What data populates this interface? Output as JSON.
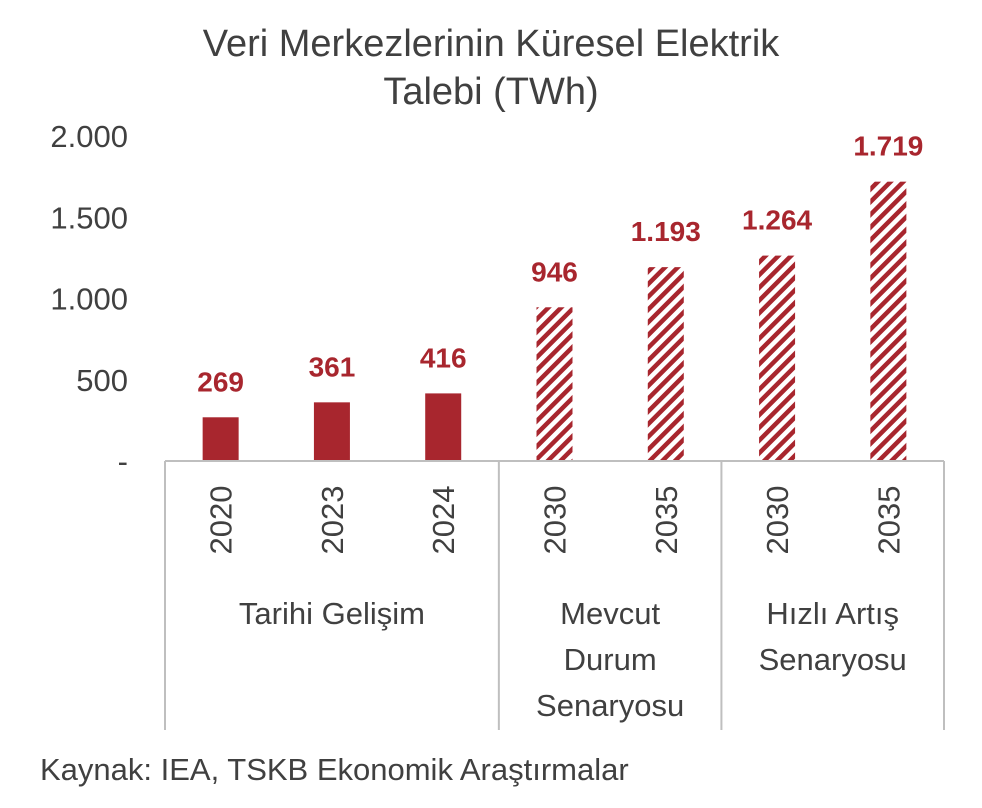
{
  "chart_data": {
    "type": "bar",
    "title_lines": [
      "Veri Merkezlerinin Küresel Elektrik",
      "Talebi (TWh)"
    ],
    "ylim": [
      0,
      2000
    ],
    "yticks": [
      {
        "value": 0,
        "label": "-"
      },
      {
        "value": 500,
        "label": "500"
      },
      {
        "value": 1000,
        "label": "1.000"
      },
      {
        "value": 1500,
        "label": "1.500"
      },
      {
        "value": 2000,
        "label": "2.000"
      }
    ],
    "categories": [
      "2020",
      "2023",
      "2024",
      "2030",
      "2035",
      "2030",
      "2035"
    ],
    "values": [
      269,
      361,
      416,
      946,
      1193,
      1264,
      1719
    ],
    "value_labels": [
      "269",
      "361",
      "416",
      "946",
      "1.193",
      "1.264",
      "1.719"
    ],
    "bar_style": [
      "solid",
      "solid",
      "solid",
      "hatched",
      "hatched",
      "hatched",
      "hatched"
    ],
    "groups": [
      {
        "label_lines": [
          "Tarihi Gelişim"
        ],
        "start": 0,
        "end": 2
      },
      {
        "label_lines": [
          "Mevcut",
          "Durum",
          "Senaryosu"
        ],
        "start": 3,
        "end": 4
      },
      {
        "label_lines": [
          "Hızlı Artış",
          "Senaryosu"
        ],
        "start": 5,
        "end": 6
      }
    ],
    "grid": false,
    "legend": "none"
  },
  "colors": {
    "bar": "#a8262e",
    "label": "#a8262e",
    "text": "#404040",
    "axis": "#bfbfbf"
  },
  "source": "Kaynak: IEA, TSKB Ekonomik Araştırmalar"
}
